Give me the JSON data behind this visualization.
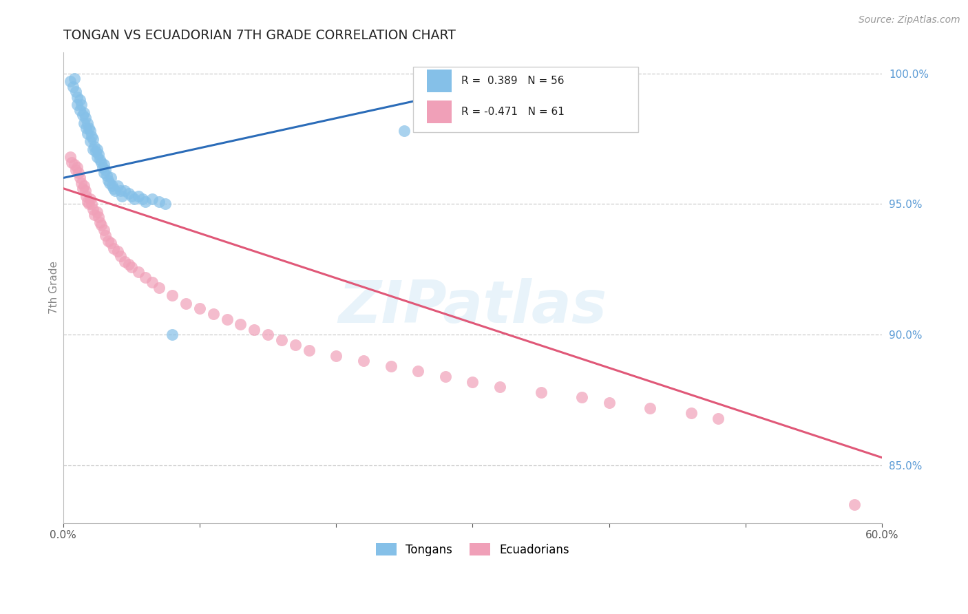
{
  "title": "TONGAN VS ECUADORIAN 7TH GRADE CORRELATION CHART",
  "source": "Source: ZipAtlas.com",
  "ylabel": "7th Grade",
  "xlim": [
    0.0,
    0.6
  ],
  "ylim": [
    0.828,
    1.008
  ],
  "yticks_right": [
    0.85,
    0.9,
    0.95,
    1.0
  ],
  "ytickslabels_right": [
    "85.0%",
    "90.0%",
    "95.0%",
    "100.0%"
  ],
  "xticks": [
    0.0,
    0.1,
    0.2,
    0.3,
    0.4,
    0.5,
    0.6
  ],
  "xticklabels": [
    "0.0%",
    "",
    "",
    "",
    "",
    "",
    "60.0%"
  ],
  "R1": 0.389,
  "N1": 56,
  "R2": -0.471,
  "N2": 61,
  "tongan_color": "#85C0E8",
  "ecuadorian_color": "#F0A0B8",
  "tongan_line_color": "#2B6CB8",
  "ecuadorian_line_color": "#E05878",
  "background_color": "#ffffff",
  "grid_color": "#cccccc",
  "watermark_text": "ZIPatlas",
  "tongan_x": [
    0.005,
    0.007,
    0.008,
    0.009,
    0.01,
    0.01,
    0.012,
    0.012,
    0.013,
    0.014,
    0.015,
    0.015,
    0.016,
    0.017,
    0.018,
    0.018,
    0.019,
    0.02,
    0.02,
    0.021,
    0.022,
    0.022,
    0.023,
    0.024,
    0.025,
    0.025,
    0.026,
    0.027,
    0.028,
    0.029,
    0.03,
    0.03,
    0.031,
    0.032,
    0.033,
    0.034,
    0.035,
    0.036,
    0.037,
    0.038,
    0.04,
    0.042,
    0.043,
    0.045,
    0.048,
    0.05,
    0.052,
    0.055,
    0.058,
    0.06,
    0.065,
    0.07,
    0.075,
    0.08,
    0.25,
    0.3
  ],
  "tongan_y": [
    0.997,
    0.995,
    0.998,
    0.993,
    0.991,
    0.988,
    0.99,
    0.986,
    0.988,
    0.984,
    0.985,
    0.981,
    0.983,
    0.979,
    0.981,
    0.977,
    0.979,
    0.978,
    0.974,
    0.976,
    0.975,
    0.971,
    0.972,
    0.97,
    0.971,
    0.968,
    0.969,
    0.967,
    0.966,
    0.964,
    0.965,
    0.962,
    0.963,
    0.961,
    0.959,
    0.958,
    0.96,
    0.957,
    0.956,
    0.955,
    0.957,
    0.955,
    0.953,
    0.955,
    0.954,
    0.953,
    0.952,
    0.953,
    0.952,
    0.951,
    0.952,
    0.951,
    0.95,
    0.9,
    0.978,
    0.985
  ],
  "ecuadorian_x": [
    0.005,
    0.006,
    0.008,
    0.009,
    0.01,
    0.011,
    0.012,
    0.013,
    0.014,
    0.015,
    0.016,
    0.017,
    0.018,
    0.019,
    0.02,
    0.021,
    0.022,
    0.023,
    0.025,
    0.026,
    0.027,
    0.028,
    0.03,
    0.031,
    0.033,
    0.035,
    0.037,
    0.04,
    0.042,
    0.045,
    0.048,
    0.05,
    0.055,
    0.06,
    0.065,
    0.07,
    0.08,
    0.09,
    0.1,
    0.11,
    0.12,
    0.13,
    0.14,
    0.15,
    0.16,
    0.17,
    0.18,
    0.2,
    0.22,
    0.24,
    0.26,
    0.28,
    0.3,
    0.32,
    0.35,
    0.38,
    0.4,
    0.43,
    0.46,
    0.48,
    0.58
  ],
  "ecuadorian_y": [
    0.968,
    0.966,
    0.965,
    0.963,
    0.964,
    0.962,
    0.96,
    0.958,
    0.956,
    0.957,
    0.955,
    0.953,
    0.951,
    0.95,
    0.952,
    0.95,
    0.948,
    0.946,
    0.947,
    0.945,
    0.943,
    0.942,
    0.94,
    0.938,
    0.936,
    0.935,
    0.933,
    0.932,
    0.93,
    0.928,
    0.927,
    0.926,
    0.924,
    0.922,
    0.92,
    0.918,
    0.915,
    0.912,
    0.91,
    0.908,
    0.906,
    0.904,
    0.902,
    0.9,
    0.898,
    0.896,
    0.894,
    0.892,
    0.89,
    0.888,
    0.886,
    0.884,
    0.882,
    0.88,
    0.878,
    0.876,
    0.874,
    0.872,
    0.87,
    0.868,
    0.835
  ],
  "tongan_line_x": [
    0.0,
    0.35
  ],
  "tongan_line_y": [
    0.96,
    1.0
  ],
  "ecuadorian_line_x": [
    0.0,
    0.6
  ],
  "ecuadorian_line_y": [
    0.956,
    0.853
  ]
}
